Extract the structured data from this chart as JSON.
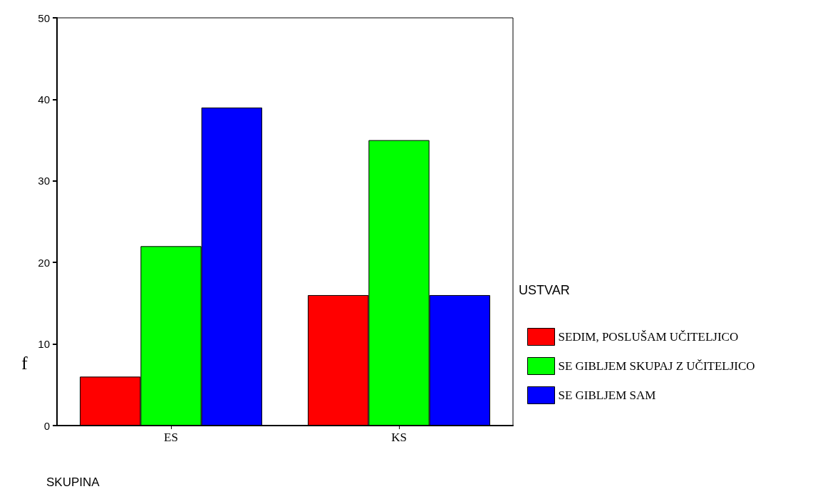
{
  "chart_data": {
    "type": "bar",
    "categories": [
      "ES",
      "KS"
    ],
    "xlabel": "SKUPINA",
    "ylabel": "f",
    "legend_title": "USTVAR",
    "series": [
      {
        "name": "SEDIM, POSLUŠAM UČITELJICO",
        "color": "#ff0000",
        "values": [
          6,
          16
        ]
      },
      {
        "name": "SE GIBLJEM SKUPAJ Z UČITELJICO",
        "color": "#00ff00",
        "values": [
          22,
          35
        ]
      },
      {
        "name": "SE GIBLJEM SAM",
        "color": "#0000ff",
        "values": [
          39,
          16
        ]
      }
    ],
    "ylim": [
      0,
      50
    ],
    "yticks": [
      0,
      10,
      20,
      30,
      40,
      50
    ],
    "grid": false,
    "legend": "right"
  }
}
